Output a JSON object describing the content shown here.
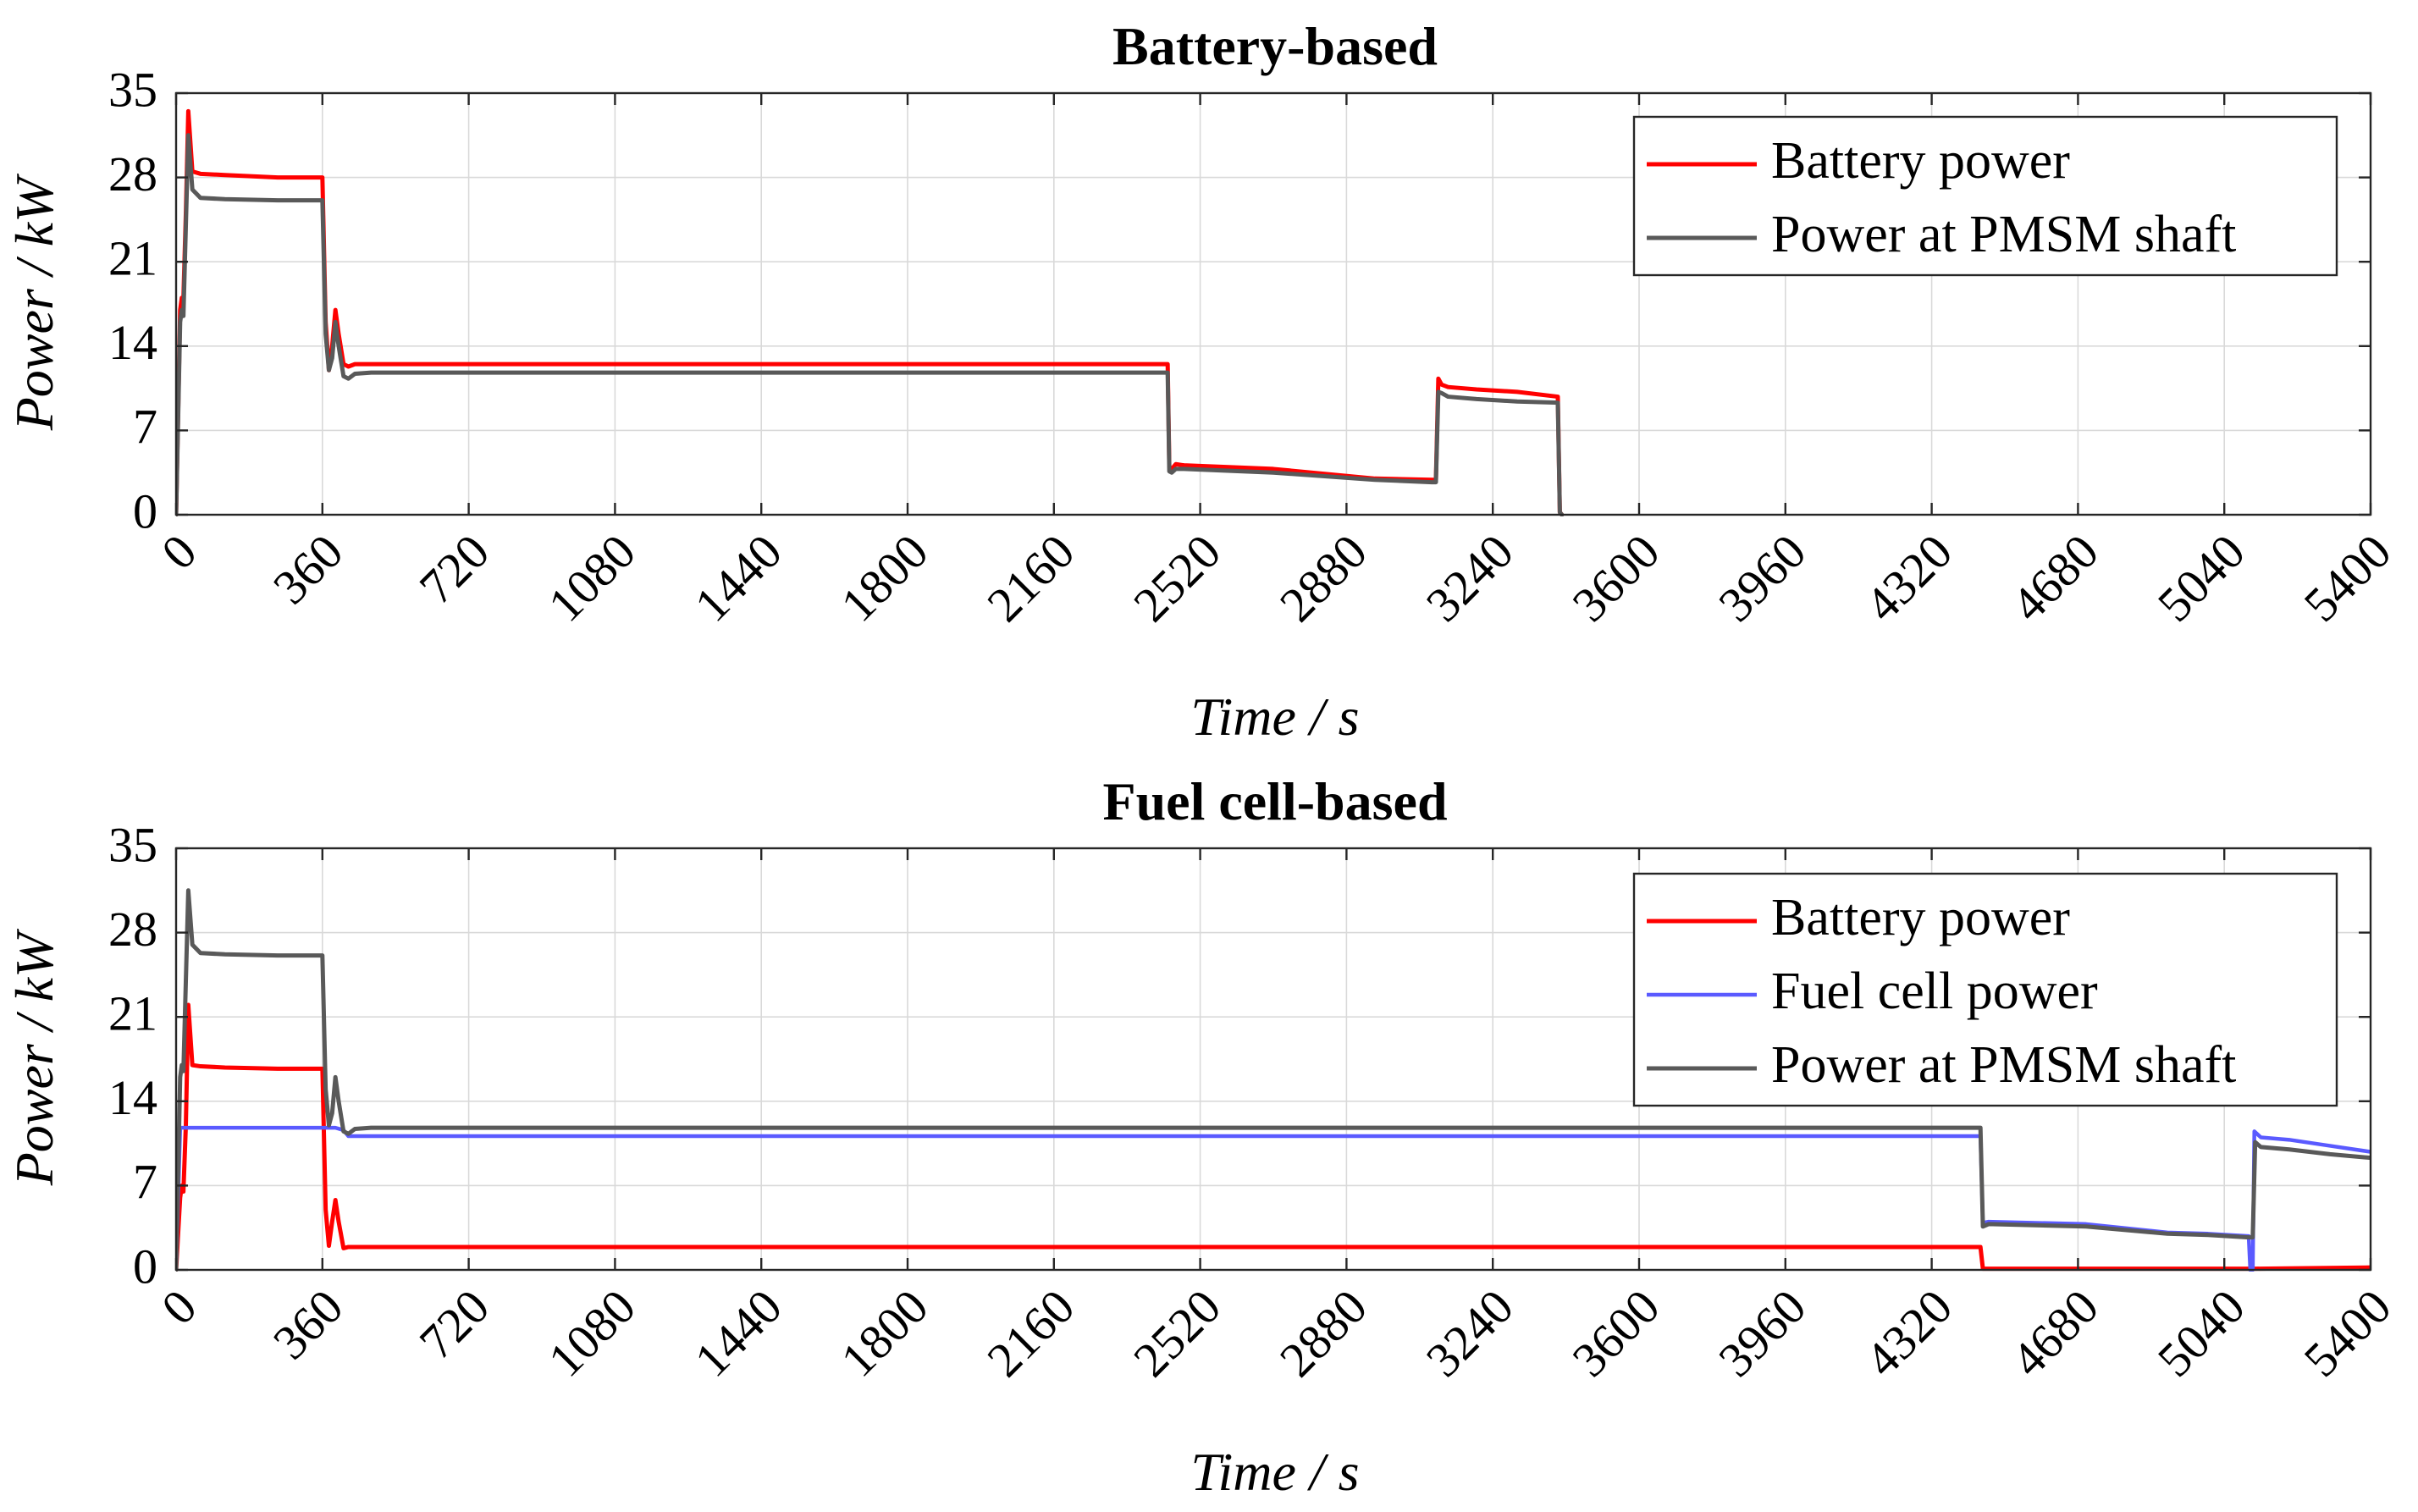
{
  "chart_data": [
    {
      "type": "line",
      "title": "Battery-based",
      "xlabel": "Time / s",
      "ylabel": "Power / kW",
      "xlim": [
        0,
        5400
      ],
      "ylim": [
        0,
        35
      ],
      "xticks": [
        "0",
        "360",
        "720",
        "1080",
        "1440",
        "1800",
        "2160",
        "2520",
        "2880",
        "3240",
        "3600",
        "3960",
        "4320",
        "4680",
        "5040",
        "5400"
      ],
      "yticks": [
        "0",
        "7",
        "14",
        "21",
        "28",
        "35"
      ],
      "grid": true,
      "legend_position": "top-right",
      "series": [
        {
          "name": "Battery power",
          "color": "#ff0000",
          "x": [
            0,
            10,
            14,
            18,
            24,
            30,
            40,
            60,
            120,
            250,
            360,
            368,
            376,
            384,
            392,
            400,
            412,
            424,
            440,
            480,
            720,
            1080,
            1440,
            1800,
            2160,
            2420,
            2440,
            2444,
            2450,
            2460,
            2480,
            2700,
            2950,
            3090,
            3100,
            3106,
            3114,
            3130,
            3200,
            3300,
            3400,
            3405,
            3410
          ],
          "y": [
            0,
            17,
            18,
            18,
            25,
            33.5,
            28.5,
            28.3,
            28.2,
            28.0,
            28.0,
            16,
            12,
            14,
            17,
            15,
            12.5,
            12.3,
            12.5,
            12.5,
            12.5,
            12.5,
            12.5,
            12.5,
            12.5,
            12.5,
            12.5,
            4.0,
            3.8,
            4.2,
            4.1,
            3.8,
            3.0,
            2.9,
            2.9,
            11.3,
            10.8,
            10.6,
            10.4,
            10.2,
            9.8,
            0.2,
            0
          ]
        },
        {
          "name": "Power at PMSM shaft",
          "color": "#595959",
          "x": [
            0,
            10,
            14,
            18,
            24,
            30,
            40,
            60,
            120,
            250,
            360,
            368,
            376,
            384,
            392,
            400,
            412,
            424,
            440,
            480,
            720,
            1080,
            1440,
            1800,
            2160,
            2420,
            2440,
            2444,
            2450,
            2460,
            2480,
            2700,
            2950,
            3090,
            3100,
            3106,
            3114,
            3130,
            3200,
            3300,
            3400,
            3405,
            3410
          ],
          "y": [
            0,
            16,
            17,
            16.5,
            24,
            31.5,
            27,
            26.3,
            26.2,
            26.1,
            26.1,
            15,
            12,
            13,
            16,
            14,
            11.5,
            11.3,
            11.7,
            11.8,
            11.8,
            11.8,
            11.8,
            11.8,
            11.8,
            11.8,
            11.8,
            3.6,
            3.5,
            3.8,
            3.8,
            3.5,
            2.9,
            2.7,
            2.7,
            10.2,
            10.1,
            9.8,
            9.6,
            9.4,
            9.3,
            0.2,
            0
          ]
        }
      ]
    },
    {
      "type": "line",
      "title": "Fuel cell-based",
      "xlabel": "Time / s",
      "ylabel": "Power / kW",
      "xlim": [
        0,
        5400
      ],
      "ylim": [
        0,
        35
      ],
      "xticks": [
        "0",
        "360",
        "720",
        "1080",
        "1440",
        "1800",
        "2160",
        "2520",
        "2880",
        "3240",
        "3600",
        "3960",
        "4320",
        "4680",
        "5040",
        "5400"
      ],
      "yticks": [
        "0",
        "7",
        "14",
        "21",
        "28",
        "35"
      ],
      "grid": true,
      "legend_position": "top-right",
      "series": [
        {
          "name": "Battery power",
          "color": "#ff0000",
          "x": [
            0,
            10,
            14,
            18,
            24,
            30,
            40,
            60,
            120,
            250,
            360,
            368,
            376,
            384,
            392,
            400,
            412,
            424,
            440,
            480,
            720,
            1440,
            2160,
            2880,
            3600,
            4320,
            4420,
            4440,
            4446,
            4460,
            4700,
            4900,
            5000,
            5100,
            5120,
            5400
          ],
          "y": [
            0,
            6,
            7,
            6.5,
            12,
            22,
            17,
            16.9,
            16.8,
            16.7,
            16.7,
            5,
            2,
            4,
            5.8,
            4,
            1.8,
            1.9,
            1.9,
            1.9,
            1.9,
            1.9,
            1.9,
            1.9,
            1.9,
            1.9,
            1.9,
            1.9,
            0.1,
            0.1,
            0.1,
            0.1,
            0.1,
            0.1,
            0.1,
            0.2
          ]
        },
        {
          "name": "Fuel cell power",
          "color": "#5a5aff",
          "x": [
            0,
            10,
            40,
            120,
            250,
            360,
            376,
            392,
            412,
            424,
            440,
            480,
            720,
            1440,
            2160,
            2880,
            3600,
            4320,
            4440,
            4446,
            4460,
            4700,
            4900,
            5000,
            5100,
            5104,
            5110,
            5114,
            5130,
            5200,
            5300,
            5400
          ],
          "y": [
            0,
            11.8,
            11.8,
            11.8,
            11.8,
            11.8,
            11.8,
            11.8,
            11.6,
            11.1,
            11.1,
            11.1,
            11.1,
            11.1,
            11.1,
            11.1,
            11.1,
            11.1,
            11.1,
            3.9,
            4.0,
            3.8,
            3.1,
            3.0,
            2.8,
            0,
            0,
            11.5,
            11.0,
            10.8,
            10.3,
            9.8
          ]
        },
        {
          "name": "Power at PMSM shaft",
          "color": "#595959",
          "x": [
            0,
            10,
            14,
            18,
            24,
            30,
            40,
            60,
            120,
            250,
            360,
            368,
            376,
            384,
            392,
            400,
            412,
            424,
            440,
            480,
            720,
            1440,
            2160,
            2880,
            3600,
            4320,
            4440,
            4446,
            4460,
            4700,
            4900,
            5000,
            5100,
            5110,
            5116,
            5130,
            5200,
            5300,
            5400
          ],
          "y": [
            0,
            16,
            17,
            16.5,
            24,
            31.5,
            27,
            26.3,
            26.2,
            26.1,
            26.1,
            15,
            12,
            13,
            16,
            14,
            11.5,
            11.3,
            11.7,
            11.8,
            11.8,
            11.8,
            11.8,
            11.8,
            11.8,
            11.8,
            11.8,
            3.6,
            3.8,
            3.6,
            3.0,
            2.9,
            2.7,
            2.7,
            10.6,
            10.2,
            10.0,
            9.6,
            9.3
          ]
        }
      ]
    }
  ]
}
